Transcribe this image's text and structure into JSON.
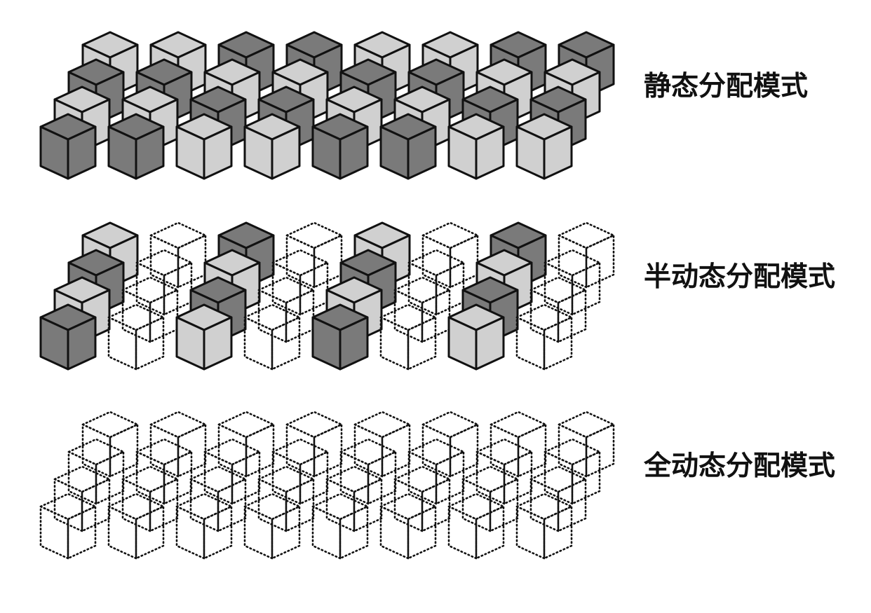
{
  "colors": {
    "dark_face": "#7a7a7a",
    "light_face": "#d0d0d0",
    "outline": "#111111",
    "background": "#ffffff"
  },
  "modes": [
    {
      "key": "static",
      "label": "静态分配模式",
      "rows_back_to_front": [
        [
          "light",
          "light",
          "dark",
          "dark",
          "light",
          "light",
          "dark",
          "dark"
        ],
        [
          "dark",
          "dark",
          "light",
          "light",
          "dark",
          "dark",
          "light",
          "light"
        ],
        [
          "light",
          "light",
          "dark",
          "dark",
          "light",
          "light",
          "dark",
          "dark"
        ],
        [
          "dark",
          "dark",
          "light",
          "light",
          "dark",
          "dark",
          "light",
          "light"
        ]
      ]
    },
    {
      "key": "semi",
      "label": "半动态分配模式",
      "rows_back_to_front": [
        [
          "light",
          "empty",
          "dark",
          "empty",
          "light",
          "empty",
          "dark",
          "empty"
        ],
        [
          "dark",
          "empty",
          "light",
          "empty",
          "dark",
          "empty",
          "light",
          "empty"
        ],
        [
          "light",
          "empty",
          "dark",
          "empty",
          "light",
          "empty",
          "dark",
          "empty"
        ],
        [
          "dark",
          "empty",
          "light",
          "empty",
          "dark",
          "empty",
          "light",
          "empty"
        ]
      ]
    },
    {
      "key": "full",
      "label": "全动态分配模式",
      "rows_back_to_front": [
        [
          "empty",
          "empty",
          "empty",
          "empty",
          "empty",
          "empty",
          "empty",
          "empty"
        ],
        [
          "empty",
          "empty",
          "empty",
          "empty",
          "empty",
          "empty",
          "empty",
          "empty"
        ],
        [
          "empty",
          "empty",
          "empty",
          "empty",
          "empty",
          "empty",
          "empty",
          "empty"
        ],
        [
          "empty",
          "empty",
          "empty",
          "empty",
          "empty",
          "empty",
          "empty",
          "empty"
        ]
      ]
    }
  ]
}
